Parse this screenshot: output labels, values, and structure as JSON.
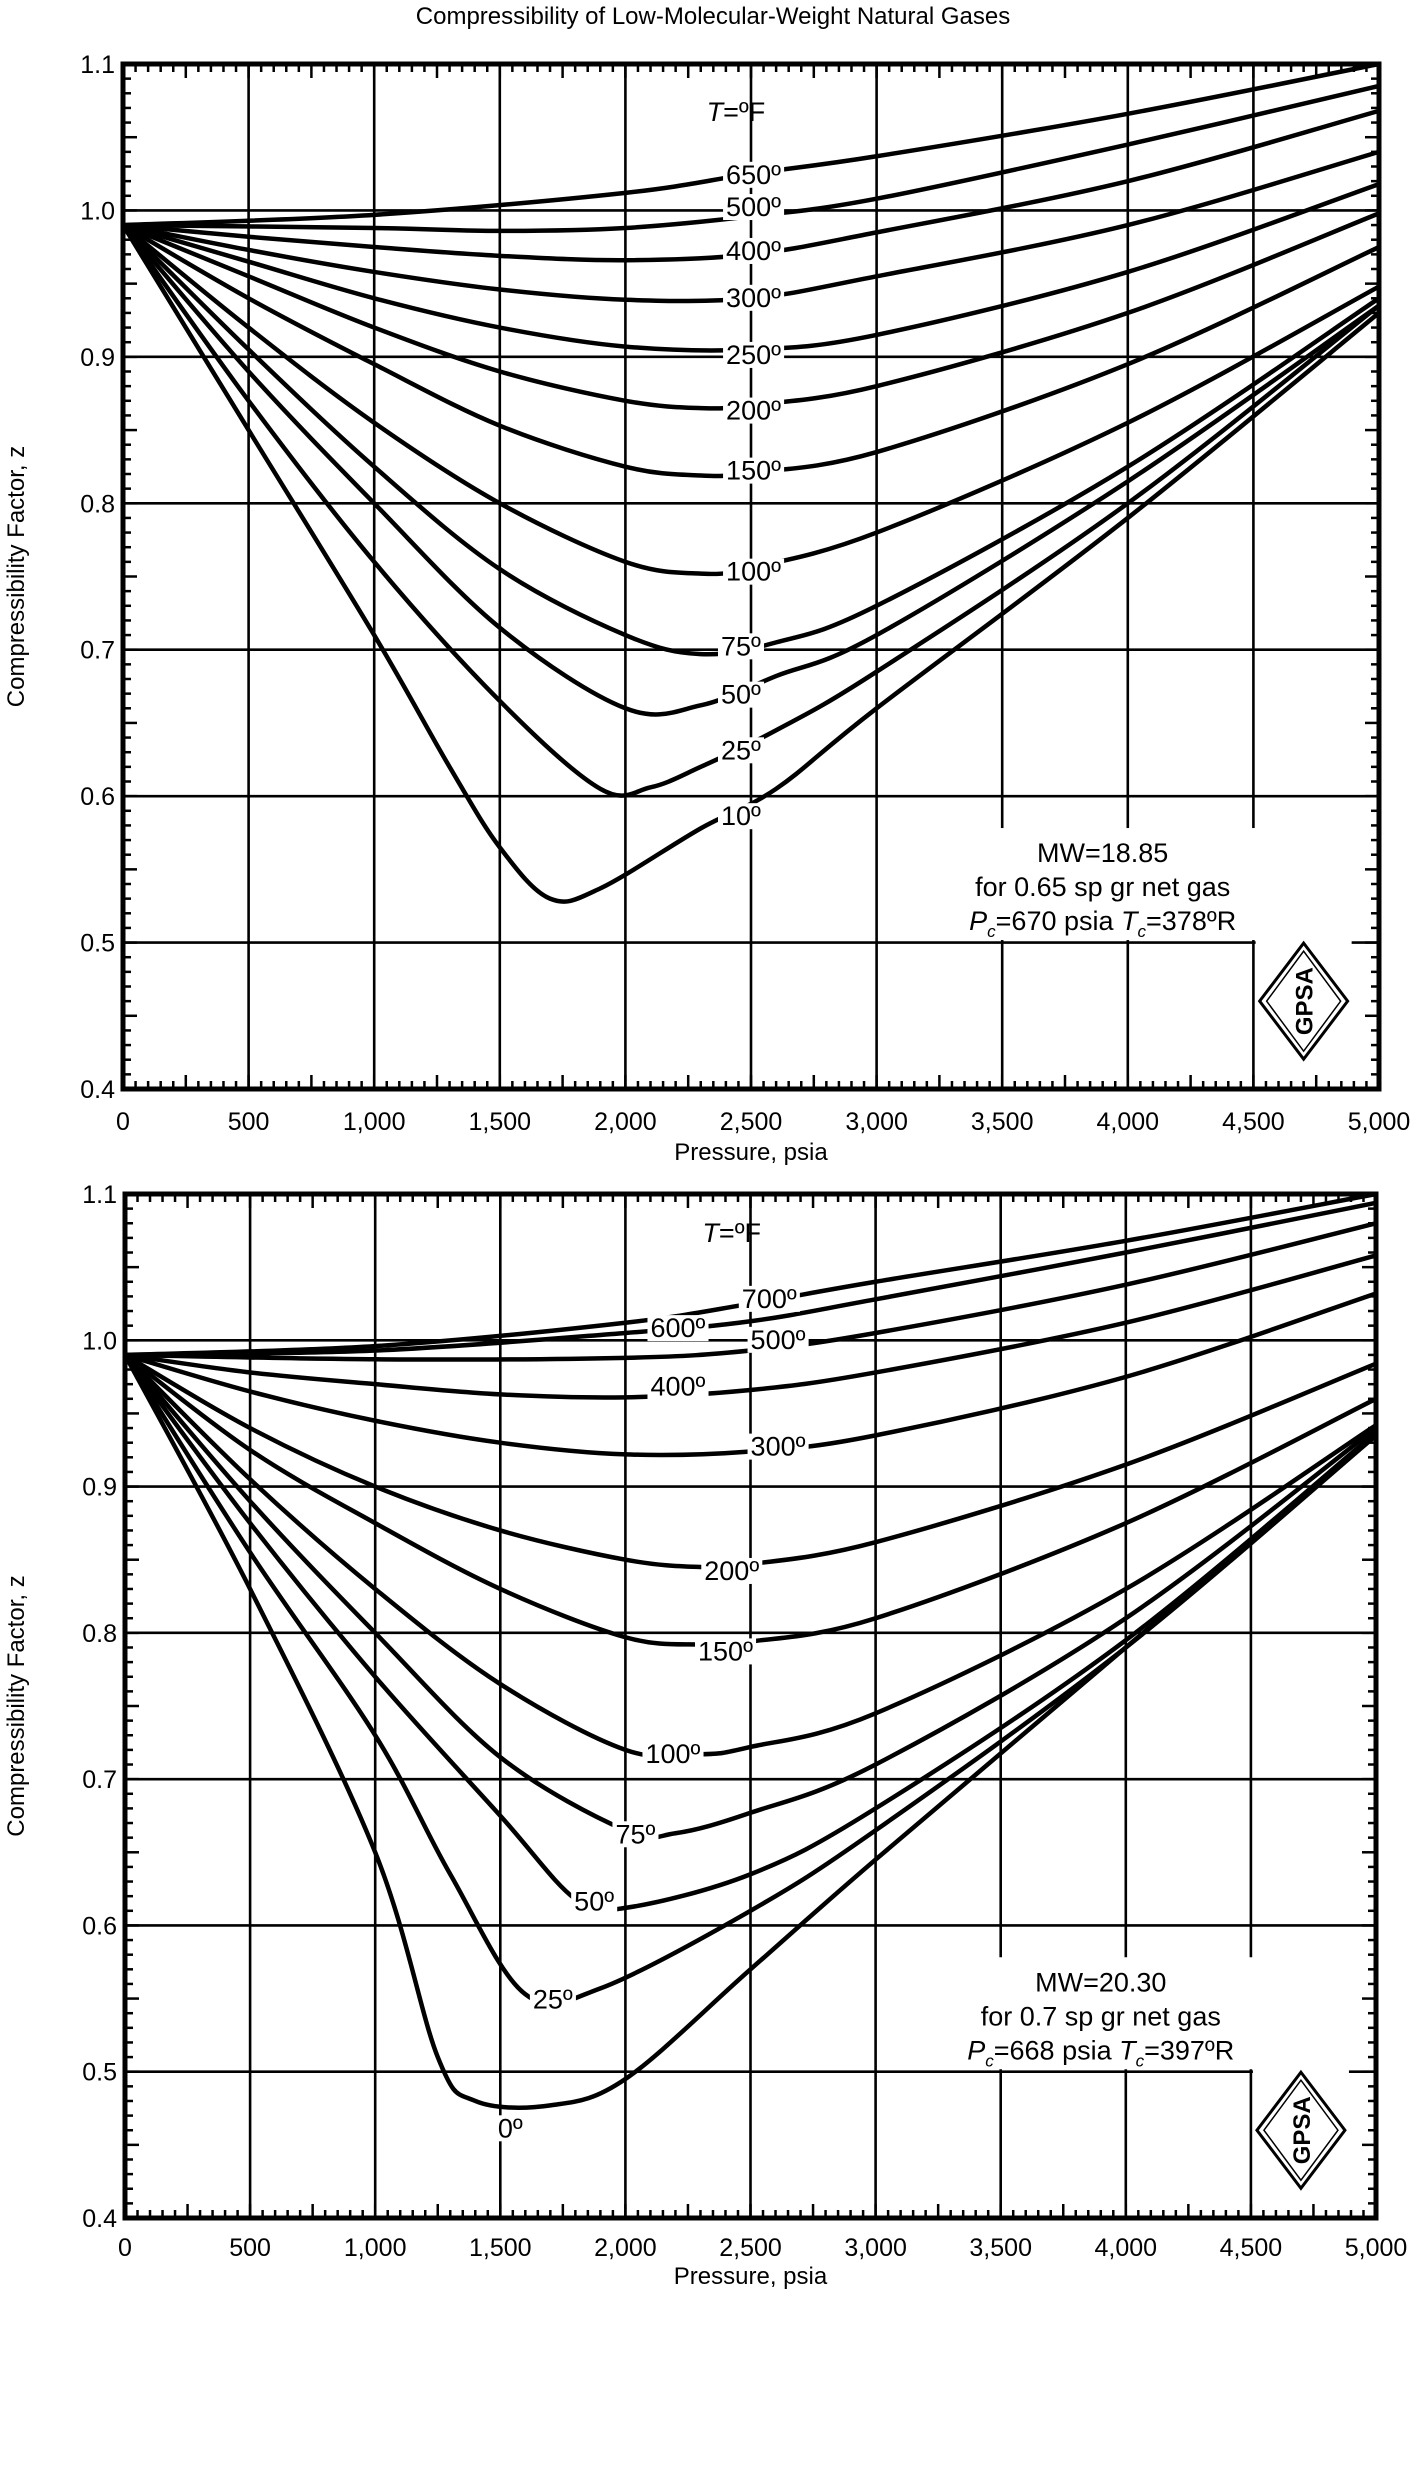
{
  "figure_title": "Compressibility of Low-Molecular-Weight Natural Gases",
  "chart_data": [
    {
      "type": "line",
      "title": "Compressibility of Low-Molecular-Weight Natural Gases",
      "xlabel": "Pressure, psia",
      "ylabel": "Compressibility Factor, z",
      "xlim": [
        0,
        5000
      ],
      "ylim": [
        0.4,
        1.1
      ],
      "x_ticks": [
        "0",
        "500",
        "1,000",
        "1,500",
        "2,000",
        "2,500",
        "3,000",
        "3,500",
        "4,000",
        "4,500",
        "5,000"
      ],
      "y_ticks": [
        "0.4",
        "0.5",
        "0.6",
        "0.7",
        "0.8",
        "0.9",
        "1.0",
        "1.1"
      ],
      "grid": true,
      "legend_title": {
        "T": "T",
        "unit": "=ºF"
      },
      "info": {
        "line1": "MW=18.85",
        "line2": "for 0.65 sp gr net gas",
        "p": "P",
        "p_sub": "c",
        "p_val": "=670 psia",
        "t": "T",
        "t_sub": "c",
        "t_val": "=378ºR"
      },
      "logo": "GPSA",
      "series": [
        {
          "name": "650º",
          "x": [
            0,
            1000,
            2000,
            2500,
            3000,
            4000,
            5000
          ],
          "y": [
            0.99,
            0.997,
            1.012,
            1.025,
            1.037,
            1.066,
            1.1
          ]
        },
        {
          "name": "500º",
          "x": [
            0,
            1000,
            1500,
            2000,
            2500,
            3000,
            4000,
            5000
          ],
          "y": [
            0.99,
            0.988,
            0.986,
            0.988,
            0.996,
            1.008,
            1.045,
            1.085
          ]
        },
        {
          "name": "400º",
          "x": [
            0,
            500,
            1000,
            1500,
            2000,
            2500,
            3000,
            4000,
            5000
          ],
          "y": [
            0.99,
            0.982,
            0.975,
            0.969,
            0.966,
            0.97,
            0.985,
            1.02,
            1.068
          ]
        },
        {
          "name": "300º",
          "x": [
            0,
            500,
            1000,
            1500,
            2000,
            2500,
            3000,
            4000,
            5000
          ],
          "y": [
            0.99,
            0.973,
            0.958,
            0.946,
            0.939,
            0.94,
            0.955,
            0.99,
            1.04
          ]
        },
        {
          "name": "250º",
          "x": [
            0,
            500,
            1000,
            1500,
            2000,
            2500,
            3000,
            4000,
            5000
          ],
          "y": [
            0.99,
            0.965,
            0.94,
            0.92,
            0.907,
            0.905,
            0.915,
            0.958,
            1.018
          ]
        },
        {
          "name": "200º",
          "x": [
            0,
            500,
            1000,
            1500,
            2000,
            2300,
            2500,
            3000,
            4000,
            5000
          ],
          "y": [
            0.99,
            0.955,
            0.92,
            0.89,
            0.87,
            0.865,
            0.867,
            0.88,
            0.93,
            0.998
          ]
        },
        {
          "name": "150º",
          "x": [
            0,
            500,
            1000,
            1500,
            2000,
            2300,
            2500,
            3000,
            4000,
            5000
          ],
          "y": [
            0.99,
            0.94,
            0.895,
            0.853,
            0.825,
            0.819,
            0.821,
            0.835,
            0.895,
            0.975
          ]
        },
        {
          "name": "100º",
          "x": [
            0,
            500,
            1000,
            1500,
            2000,
            2300,
            2500,
            3000,
            4000,
            5000
          ],
          "y": [
            0.99,
            0.92,
            0.855,
            0.8,
            0.76,
            0.752,
            0.756,
            0.78,
            0.855,
            0.948
          ]
        },
        {
          "name": "75º",
          "x": [
            0,
            500,
            1000,
            1500,
            2000,
            2300,
            2600,
            3000,
            4000,
            5000
          ],
          "y": [
            0.99,
            0.905,
            0.825,
            0.755,
            0.71,
            0.697,
            0.705,
            0.73,
            0.825,
            0.94
          ]
        },
        {
          "name": "50º",
          "x": [
            0,
            500,
            1000,
            1500,
            2000,
            2300,
            2600,
            3000,
            4000,
            5000
          ],
          "y": [
            0.99,
            0.89,
            0.8,
            0.715,
            0.66,
            0.662,
            0.682,
            0.71,
            0.815,
            0.935
          ]
        },
        {
          "name": "25º",
          "x": [
            0,
            500,
            1000,
            1500,
            1900,
            2100,
            2300,
            2600,
            3000,
            4000,
            5000
          ],
          "y": [
            0.99,
            0.87,
            0.76,
            0.665,
            0.605,
            0.606,
            0.62,
            0.645,
            0.685,
            0.8,
            0.935
          ]
        },
        {
          "name": "10º",
          "x": [
            0,
            500,
            1000,
            1300,
            1500,
            1700,
            1900,
            2300,
            2600,
            3000,
            4000,
            5000
          ],
          "y": [
            0.99,
            0.85,
            0.71,
            0.62,
            0.565,
            0.53,
            0.537,
            0.578,
            0.605,
            0.66,
            0.79,
            0.93
          ]
        }
      ]
    },
    {
      "type": "line",
      "xlabel": "Pressure, psia",
      "ylabel": "Compressibility Factor, z",
      "xlim": [
        0,
        5000
      ],
      "ylim": [
        0.4,
        1.1
      ],
      "x_ticks": [
        "0",
        "500",
        "1,000",
        "1,500",
        "2,000",
        "2,500",
        "3,000",
        "3,500",
        "4,000",
        "4,500",
        "5,000"
      ],
      "y_ticks": [
        "0.4",
        "0.5",
        "0.6",
        "0.7",
        "0.8",
        "0.9",
        "1.0",
        "1.1"
      ],
      "grid": true,
      "legend_title": {
        "T": "T",
        "unit": "=ºF"
      },
      "info": {
        "line1": "MW=20.30",
        "line2": "for 0.7 sp gr net gas",
        "p": "P",
        "p_sub": "c",
        "p_val": "=668 psia",
        "t": "T",
        "t_sub": "c",
        "t_val": "=397ºR"
      },
      "logo": "GPSA",
      "series": [
        {
          "name": "700º",
          "x": [
            0,
            1000,
            2000,
            2500,
            3000,
            4000,
            5000
          ],
          "y": [
            0.99,
            0.996,
            1.012,
            1.025,
            1.04,
            1.068,
            1.1
          ]
        },
        {
          "name": "600º",
          "x": [
            0,
            1000,
            2000,
            2500,
            3000,
            4000,
            5000
          ],
          "y": [
            0.99,
            0.993,
            1.005,
            1.013,
            1.028,
            1.06,
            1.094
          ]
        },
        {
          "name": "500º",
          "x": [
            0,
            1000,
            2000,
            2500,
            3000,
            4000,
            5000
          ],
          "y": [
            0.99,
            0.987,
            0.988,
            0.993,
            1.005,
            1.038,
            1.08
          ]
        },
        {
          "name": "400º",
          "x": [
            0,
            500,
            1000,
            1500,
            2000,
            2500,
            3000,
            4000,
            5000
          ],
          "y": [
            0.99,
            0.978,
            0.97,
            0.963,
            0.961,
            0.966,
            0.978,
            1.012,
            1.058
          ]
        },
        {
          "name": "300º",
          "x": [
            0,
            500,
            1000,
            1500,
            2000,
            2500,
            3000,
            4000,
            5000
          ],
          "y": [
            0.99,
            0.965,
            0.945,
            0.93,
            0.922,
            0.924,
            0.935,
            0.975,
            1.032
          ]
        },
        {
          "name": "200º",
          "x": [
            0,
            500,
            1000,
            1500,
            2000,
            2300,
            2500,
            3000,
            4000,
            5000
          ],
          "y": [
            0.99,
            0.94,
            0.9,
            0.87,
            0.85,
            0.845,
            0.847,
            0.862,
            0.915,
            0.984
          ]
        },
        {
          "name": "150º",
          "x": [
            0,
            500,
            1000,
            1500,
            2000,
            2300,
            2500,
            3000,
            4000,
            5000
          ],
          "y": [
            0.99,
            0.925,
            0.875,
            0.83,
            0.797,
            0.792,
            0.794,
            0.81,
            0.875,
            0.96
          ]
        },
        {
          "name": "100º",
          "x": [
            0,
            500,
            1000,
            1500,
            2000,
            2300,
            2500,
            3000,
            4000,
            5000
          ],
          "y": [
            0.99,
            0.905,
            0.83,
            0.765,
            0.72,
            0.717,
            0.722,
            0.745,
            0.83,
            0.942
          ]
        },
        {
          "name": "75º",
          "x": [
            0,
            500,
            1000,
            1500,
            2000,
            2200,
            2500,
            3000,
            4000,
            5000
          ],
          "y": [
            0.99,
            0.89,
            0.8,
            0.715,
            0.665,
            0.663,
            0.677,
            0.71,
            0.81,
            0.94
          ]
        },
        {
          "name": "50º",
          "x": [
            0,
            500,
            1000,
            1500,
            1800,
            2000,
            2500,
            3000,
            4000,
            5000
          ],
          "y": [
            0.99,
            0.875,
            0.77,
            0.675,
            0.618,
            0.612,
            0.635,
            0.68,
            0.795,
            0.937
          ]
        },
        {
          "name": "25º",
          "x": [
            0,
            500,
            1000,
            1300,
            1600,
            1900,
            2500,
            3000,
            4000,
            5000
          ],
          "y": [
            0.99,
            0.855,
            0.73,
            0.635,
            0.553,
            0.557,
            0.61,
            0.665,
            0.79,
            0.935
          ]
        },
        {
          "name": "0º",
          "x": [
            0,
            500,
            1000,
            1250,
            1400,
            1700,
            2000,
            2500,
            3000,
            4000,
            5000
          ],
          "y": [
            0.99,
            0.83,
            0.65,
            0.51,
            0.48,
            0.477,
            0.495,
            0.57,
            0.645,
            0.79,
            0.935
          ]
        }
      ]
    }
  ]
}
